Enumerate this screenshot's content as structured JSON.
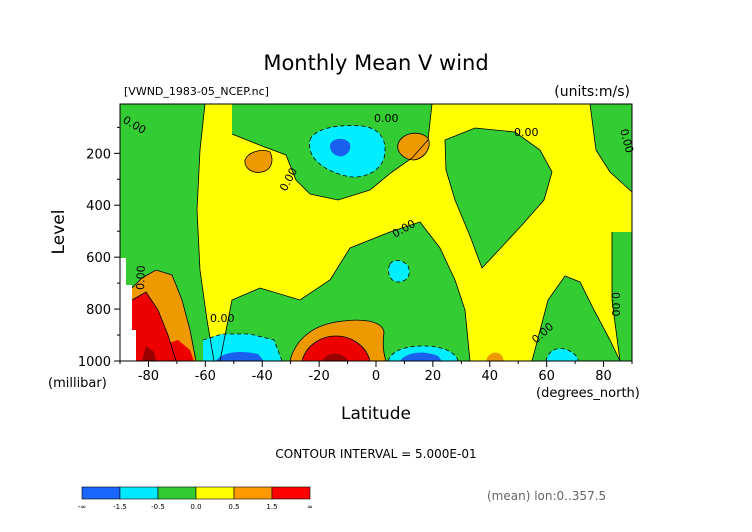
{
  "chart_data": {
    "type": "contour",
    "title": "Monthly Mean V wind",
    "dataset_label": "[VWND_1983-05_NCEP.nc]",
    "units_label": "(units:m/s)",
    "xlabel": "Latitude",
    "x_units": "(degrees_north)",
    "ylabel": "Level",
    "y_units": "(millibar)",
    "x_ticks": [
      "-80",
      "-60",
      "-40",
      "-20",
      "0",
      "20",
      "40",
      "60",
      "80"
    ],
    "x_tick_values": [
      -80,
      -60,
      -40,
      -20,
      0,
      20,
      40,
      60,
      80
    ],
    "xlim": [
      -90,
      90
    ],
    "y_ticks": [
      "200",
      "400",
      "600",
      "800",
      "1000"
    ],
    "y_tick_values": [
      200,
      400,
      600,
      800,
      1000
    ],
    "ylim": [
      1000,
      10
    ],
    "contour_labels": [
      "0.00",
      "0.00",
      "0.00",
      "0.00",
      "0.00",
      "0.00",
      "0.00",
      "0.00",
      "0.00",
      "0.00"
    ],
    "contour_interval_text": "CONTOUR INTERVAL = 5.000E-01",
    "footnote": "(mean) lon:0..357.5",
    "colorbar": {
      "colors": [
        "#1a66ff",
        "#00e8ff",
        "#33cc33",
        "#ffff00",
        "#ff9900",
        "#ff0000"
      ],
      "labels": [
        "-∞",
        "-1.5",
        "-0.5",
        "0.0",
        "0.5",
        "1.5",
        "∞"
      ]
    },
    "colors": {
      "green": "#33cc33",
      "yellow": "#ffff00",
      "orange": "#ee9900",
      "red": "#ee0000",
      "darkred": "#990000",
      "cyan": "#00eeff",
      "blue": "#1a60ee"
    }
  }
}
